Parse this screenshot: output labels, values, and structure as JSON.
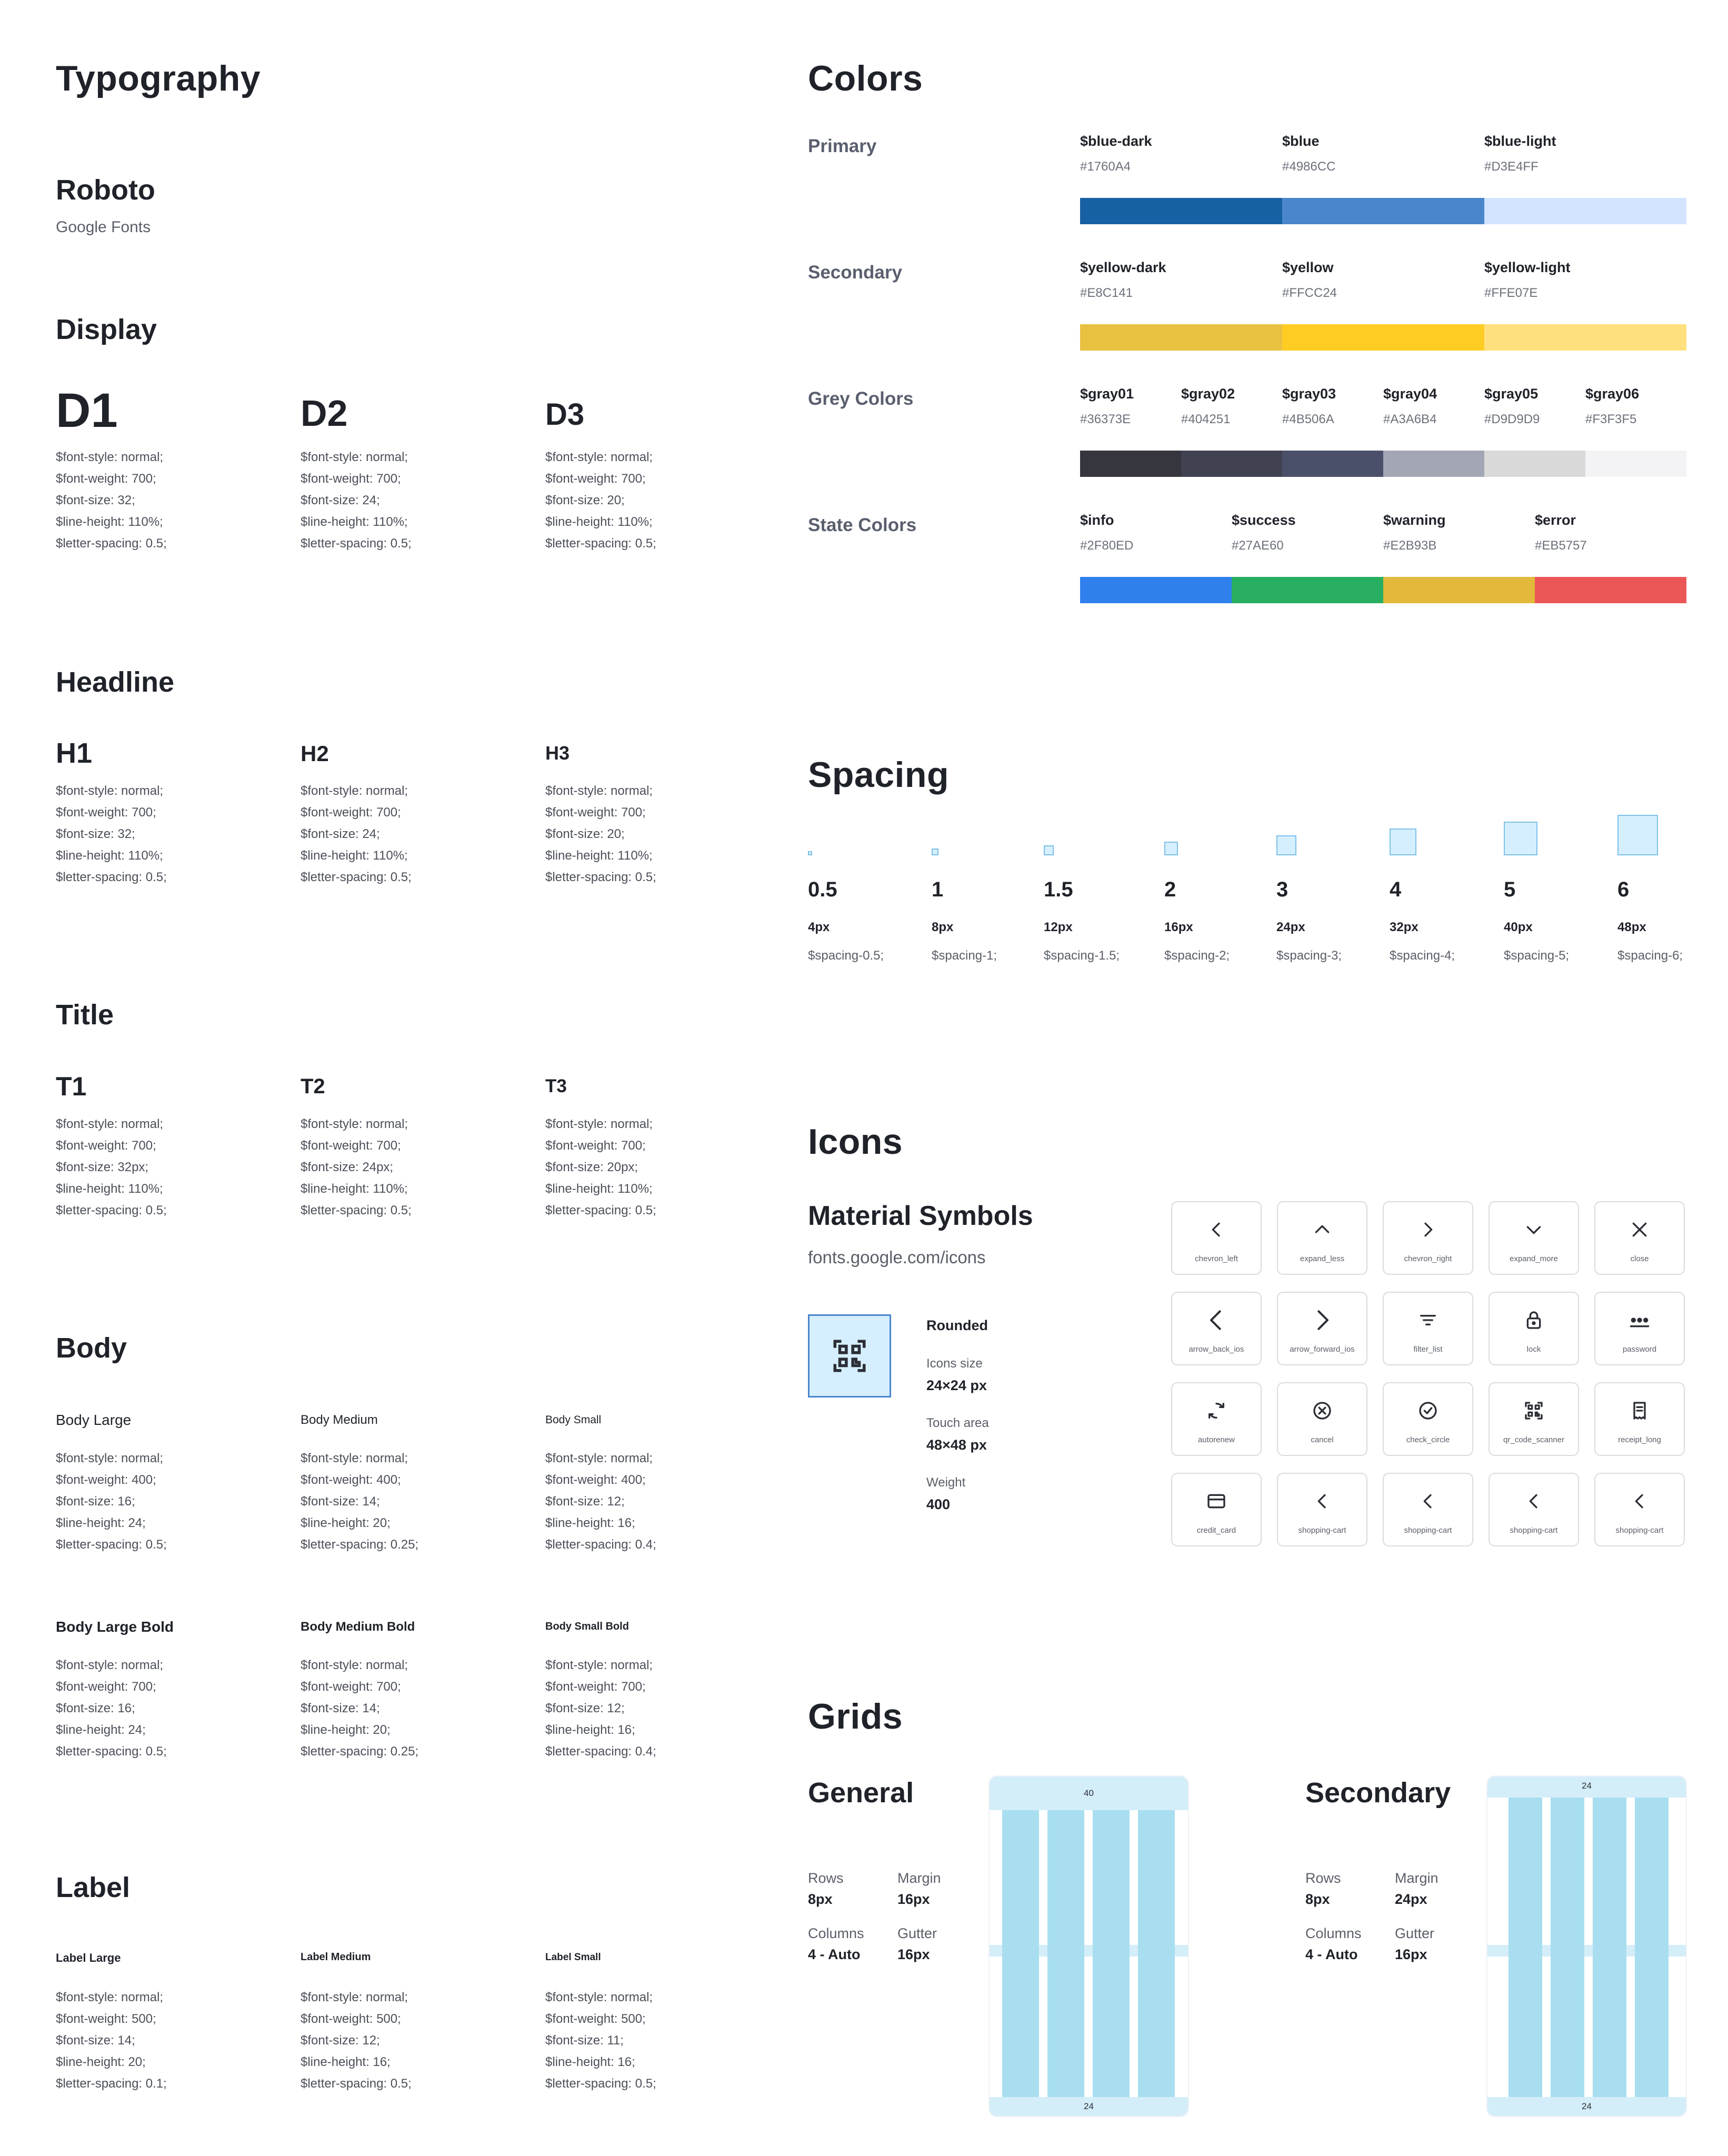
{
  "typography": {
    "title": "Typography",
    "font_name": "Roboto",
    "font_source": "Google Fonts",
    "display": {
      "title": "Display",
      "items": [
        {
          "label": "D1",
          "lines": [
            "$font-style: normal;",
            "$font-weight: 700;",
            "$font-size: 32;",
            "$line-height: 110%;",
            "$letter-spacing: 0.5;"
          ]
        },
        {
          "label": "D2",
          "lines": [
            "$font-style: normal;",
            "$font-weight: 700;",
            "$font-size: 24;",
            "$line-height: 110%;",
            "$letter-spacing: 0.5;"
          ]
        },
        {
          "label": "D3",
          "lines": [
            "$font-style: normal;",
            "$font-weight: 700;",
            "$font-size: 20;",
            "$line-height: 110%;",
            "$letter-spacing: 0.5;"
          ]
        }
      ]
    },
    "headline": {
      "title": "Headline",
      "items": [
        {
          "label": "H1",
          "lines": [
            "$font-style: normal;",
            "$font-weight: 700;",
            "$font-size: 32;",
            "$line-height: 110%;",
            "$letter-spacing: 0.5;"
          ]
        },
        {
          "label": "H2",
          "lines": [
            "$font-style: normal;",
            "$font-weight: 700;",
            "$font-size: 24;",
            "$line-height: 110%;",
            "$letter-spacing: 0.5;"
          ]
        },
        {
          "label": "H3",
          "lines": [
            "$font-style: normal;",
            "$font-weight: 700;",
            "$font-size: 20;",
            "$line-height: 110%;",
            "$letter-spacing: 0.5;"
          ]
        }
      ]
    },
    "title_section": {
      "title": "Title",
      "items": [
        {
          "label": "T1",
          "lines": [
            "$font-style: normal;",
            "$font-weight: 700;",
            "$font-size: 32px;",
            "$line-height: 110%;",
            "$letter-spacing: 0.5;"
          ]
        },
        {
          "label": "T2",
          "lines": [
            "$font-style: normal;",
            "$font-weight: 700;",
            "$font-size: 24px;",
            "$line-height: 110%;",
            "$letter-spacing: 0.5;"
          ]
        },
        {
          "label": "T3",
          "lines": [
            "$font-style: normal;",
            "$font-weight: 700;",
            "$font-size: 20px;",
            "$line-height: 110%;",
            "$letter-spacing: 0.5;"
          ]
        }
      ]
    },
    "body": {
      "title": "Body",
      "regular": [
        {
          "label": "Body Large",
          "lines": [
            "$font-style: normal;",
            "$font-weight: 400;",
            "$font-size: 16;",
            "$line-height: 24;",
            "$letter-spacing: 0.5;"
          ]
        },
        {
          "label": "Body Medium",
          "lines": [
            "$font-style: normal;",
            "$font-weight: 400;",
            "$font-size: 14;",
            "$line-height: 20;",
            "$letter-spacing: 0.25;"
          ]
        },
        {
          "label": "Body Small",
          "lines": [
            "$font-style: normal;",
            "$font-weight: 400;",
            "$font-size: 12;",
            "$line-height: 16;",
            "$letter-spacing: 0.4;"
          ]
        }
      ],
      "bold": [
        {
          "label": "Body Large Bold",
          "lines": [
            "$font-style: normal;",
            "$font-weight: 700;",
            "$font-size: 16;",
            "$line-height: 24;",
            "$letter-spacing: 0.5;"
          ]
        },
        {
          "label": "Body Medium Bold",
          "lines": [
            "$font-style: normal;",
            "$font-weight: 700;",
            "$font-size: 14;",
            "$line-height: 20;",
            "$letter-spacing: 0.25;"
          ]
        },
        {
          "label": "Body Small Bold",
          "lines": [
            "$font-style: normal;",
            "$font-weight: 700;",
            "$font-size: 12;",
            "$line-height: 16;",
            "$letter-spacing: 0.4;"
          ]
        }
      ]
    },
    "label": {
      "title": "Label",
      "items": [
        {
          "label": "Label Large",
          "lines": [
            "$font-style: normal;",
            "$font-weight: 500;",
            "$font-size: 14;",
            "$line-height: 20;",
            "$letter-spacing: 0.1;"
          ]
        },
        {
          "label": "Label Medium",
          "lines": [
            "$font-style: normal;",
            "$font-weight: 500;",
            "$font-size: 12;",
            "$line-height: 16;",
            "$letter-spacing: 0.5;"
          ]
        },
        {
          "label": "Label Small",
          "lines": [
            "$font-style: normal;",
            "$font-weight: 500;",
            "$font-size: 11;",
            "$line-height: 16;",
            "$letter-spacing: 0.5;"
          ]
        }
      ]
    }
  },
  "colors": {
    "title": "Colors",
    "groups": [
      {
        "label": "Primary",
        "swatches": [
          {
            "name": "$blue-dark",
            "hex": "#1760A4"
          },
          {
            "name": "$blue",
            "hex": "#4986CC"
          },
          {
            "name": "$blue-light",
            "hex": "#D3E4FF"
          }
        ]
      },
      {
        "label": "Secondary",
        "swatches": [
          {
            "name": "$yellow-dark",
            "hex": "#E8C141"
          },
          {
            "name": "$yellow",
            "hex": "#FFCC24"
          },
          {
            "name": "$yellow-light",
            "hex": "#FFE07E"
          }
        ]
      },
      {
        "label": "Grey Colors",
        "swatches": [
          {
            "name": "$gray01",
            "hex": "#36373E"
          },
          {
            "name": "$gray02",
            "hex": "#404251"
          },
          {
            "name": "$gray03",
            "hex": "#4B506A"
          },
          {
            "name": "$gray04",
            "hex": "#A3A6B4"
          },
          {
            "name": "$gray05",
            "hex": "#D9D9D9"
          },
          {
            "name": "$gray06",
            "hex": "#F3F3F5"
          }
        ]
      },
      {
        "label": "State Colors",
        "swatches": [
          {
            "name": "$info",
            "hex": "#2F80ED"
          },
          {
            "name": "$success",
            "hex": "#27AE60"
          },
          {
            "name": "$warning",
            "hex": "#E2B93B"
          },
          {
            "name": "$error",
            "hex": "#EB5757"
          }
        ]
      }
    ]
  },
  "spacing": {
    "title": "Spacing",
    "items": [
      {
        "step": "0.5",
        "px": "4px",
        "var": "$spacing-0.5;"
      },
      {
        "step": "1",
        "px": "8px",
        "var": "$spacing-1;"
      },
      {
        "step": "1.5",
        "px": "12px",
        "var": "$spacing-1.5;"
      },
      {
        "step": "2",
        "px": "16px",
        "var": "$spacing-2;"
      },
      {
        "step": "3",
        "px": "24px",
        "var": "$spacing-3;"
      },
      {
        "step": "4",
        "px": "32px",
        "var": "$spacing-4;"
      },
      {
        "step": "5",
        "px": "40px",
        "var": "$spacing-5;"
      },
      {
        "step": "6",
        "px": "48px",
        "var": "$spacing-6;"
      }
    ]
  },
  "icons": {
    "title": "Icons",
    "set_name": "Material Symbols",
    "url": "fonts.google.com/icons",
    "style_label": "Rounded",
    "size_label": "Icons size",
    "size_value": "24×24 px",
    "touch_label": "Touch area",
    "touch_value": "48×48 px",
    "weight_label": "Weight",
    "weight_value": "400",
    "tiles": [
      {
        "name": "chevron_left",
        "icon": "chevron-left-icon"
      },
      {
        "name": "expand_less",
        "icon": "expand-less-icon"
      },
      {
        "name": "chevron_right",
        "icon": "chevron-right-icon"
      },
      {
        "name": "expand_more",
        "icon": "expand-more-icon"
      },
      {
        "name": "close",
        "icon": "close-icon"
      },
      {
        "name": "arrow_back_ios",
        "icon": "arrow-back-ios-icon"
      },
      {
        "name": "arrow_forward_ios",
        "icon": "arrow-forward-ios-icon"
      },
      {
        "name": "filter_list",
        "icon": "filter-list-icon"
      },
      {
        "name": "lock",
        "icon": "lock-icon"
      },
      {
        "name": "password",
        "icon": "password-icon"
      },
      {
        "name": "autorenew",
        "icon": "autorenew-icon"
      },
      {
        "name": "cancel",
        "icon": "cancel-icon"
      },
      {
        "name": "check_circle",
        "icon": "check-circle-icon"
      },
      {
        "name": "qr_code_scanner",
        "icon": "qr-code-scanner-icon"
      },
      {
        "name": "receipt_long",
        "icon": "receipt-long-icon"
      },
      {
        "name": "credit_card",
        "icon": "credit-card-icon"
      },
      {
        "name": "shopping-cart",
        "icon": "chevron-left-icon"
      },
      {
        "name": "shopping-cart",
        "icon": "chevron-left-icon"
      },
      {
        "name": "shopping-cart",
        "icon": "chevron-left-icon"
      },
      {
        "name": "shopping-cart",
        "icon": "chevron-left-icon"
      }
    ]
  },
  "grids": {
    "title": "Grids",
    "general": {
      "title": "General",
      "rows_label": "Rows",
      "rows_value": "8px",
      "margin_label": "Margin",
      "margin_value": "16px",
      "columns_label": "Columns",
      "columns_value": "4 - Auto",
      "gutter_label": "Gutter",
      "gutter_value": "16px",
      "top_marker": "40",
      "bottom_marker": "24"
    },
    "secondary": {
      "title": "Secondary",
      "rows_label": "Rows",
      "rows_value": "8px",
      "margin_label": "Margin",
      "margin_value": "24px",
      "columns_label": "Columns",
      "columns_value": "4 - Auto",
      "gutter_label": "Gutter",
      "gutter_value": "16px",
      "top_marker": "24",
      "bottom_marker": "24"
    }
  }
}
